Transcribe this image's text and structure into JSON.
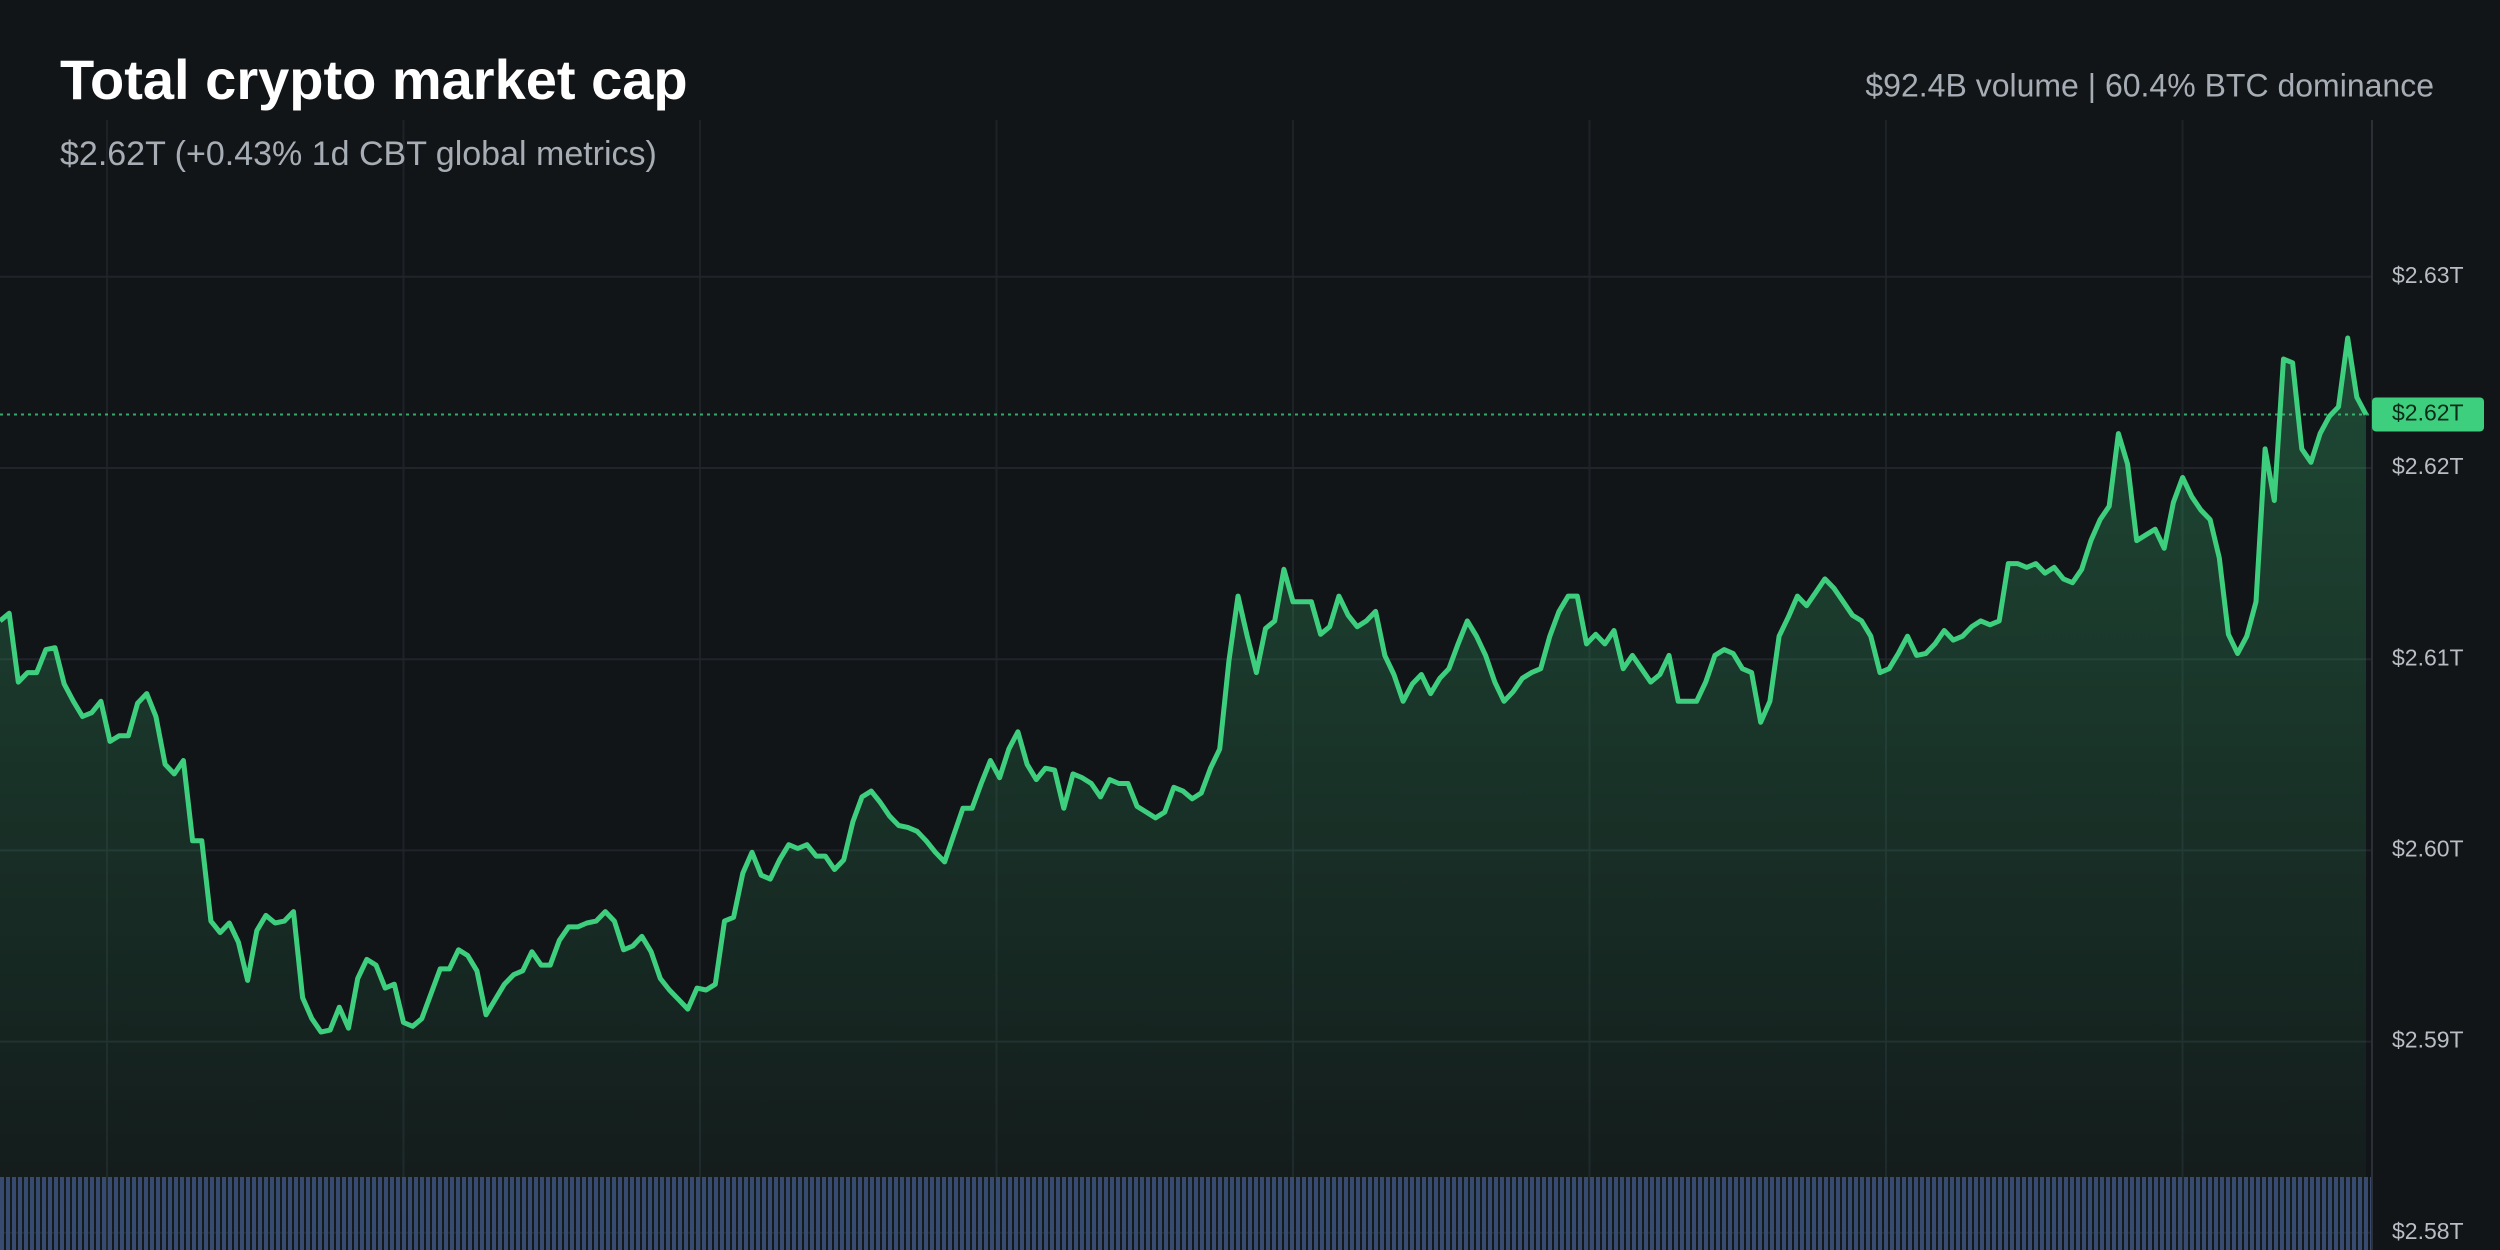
{
  "header": {
    "title": "Total crypto market cap",
    "subtitle": "$2.62T (+0.43% 1d CBT global metrics)",
    "stats": "$92.4B volume | 60.4% BTC dominance"
  },
  "chart_data": {
    "type": "area",
    "color": "#3ecf7e",
    "grid": true,
    "ylim": [
      2.5791,
      2.6382
    ],
    "yticks": [
      {
        "value": 2.58,
        "label": "$2.58T"
      },
      {
        "value": 2.59,
        "label": "$2.59T"
      },
      {
        "value": 2.6,
        "label": "$2.60T"
      },
      {
        "value": 2.61,
        "label": "$2.61T"
      },
      {
        "value": 2.62,
        "label": "$2.62T"
      },
      {
        "value": 2.63,
        "label": "$2.63T"
      }
    ],
    "last_price": {
      "value": 2.6228,
      "label": "$2.62T"
    },
    "values": [
      2.612,
      2.6124,
      2.6088,
      2.6093,
      2.6093,
      2.6105,
      2.6106,
      2.6087,
      2.6078,
      2.607,
      2.6072,
      2.6078,
      2.6057,
      2.606,
      2.606,
      2.6077,
      2.6082,
      2.607,
      2.6045,
      2.604,
      2.6047,
      2.6005,
      2.6005,
      2.5963,
      2.5957,
      2.5962,
      2.5952,
      2.5932,
      2.5958,
      2.5966,
      2.5962,
      2.5963,
      2.5968,
      2.5923,
      2.5912,
      2.5905,
      2.5906,
      2.5918,
      2.5907,
      2.5933,
      2.5943,
      2.594,
      2.5928,
      2.593,
      2.591,
      2.5908,
      2.5912,
      2.5925,
      2.5938,
      2.5938,
      2.5948,
      2.5945,
      2.5937,
      2.5914,
      2.5922,
      2.593,
      2.5935,
      2.5937,
      2.5947,
      2.594,
      2.594,
      2.5953,
      2.596,
      2.596,
      2.5962,
      2.5963,
      2.5968,
      2.5963,
      2.5948,
      2.595,
      2.5955,
      2.5947,
      2.5933,
      2.5927,
      2.5922,
      2.5917,
      2.5928,
      2.5927,
      2.593,
      2.5963,
      2.5965,
      2.5988,
      2.5999,
      2.5987,
      2.5985,
      2.5995,
      2.6003,
      2.6001,
      2.6003,
      2.5997,
      2.5997,
      2.599,
      2.5995,
      2.6015,
      2.6028,
      2.6031,
      2.6025,
      2.6018,
      2.6013,
      2.6012,
      2.601,
      2.6005,
      2.5999,
      2.5994,
      2.6008,
      2.6022,
      2.6022,
      2.6035,
      2.6047,
      2.6038,
      2.6053,
      2.6062,
      2.6045,
      2.6037,
      2.6043,
      2.6042,
      2.6022,
      2.604,
      2.6038,
      2.6035,
      2.6028,
      2.6037,
      2.6035,
      2.6035,
      2.6023,
      2.602,
      2.6017,
      2.602,
      2.6033,
      2.6031,
      2.6027,
      2.603,
      2.6043,
      2.6053,
      2.6099,
      2.6133,
      2.6112,
      2.6093,
      2.6116,
      2.612,
      2.6147,
      2.613,
      2.613,
      2.613,
      2.6113,
      2.6117,
      2.6133,
      2.6123,
      2.6117,
      2.612,
      2.6125,
      2.6102,
      2.6092,
      2.6078,
      2.6087,
      2.6092,
      2.6082,
      2.609,
      2.6095,
      2.6108,
      2.612,
      2.6112,
      2.6102,
      2.6088,
      2.6078,
      2.6083,
      2.609,
      2.6093,
      2.6095,
      2.6112,
      2.6125,
      2.6133,
      2.6133,
      2.6108,
      2.6113,
      2.6108,
      2.6115,
      2.6095,
      2.6102,
      2.6095,
      2.6088,
      2.6092,
      2.6102,
      2.6078,
      2.6078,
      2.6078,
      2.6088,
      2.6102,
      2.6105,
      2.6103,
      2.6095,
      2.6093,
      2.6067,
      2.6078,
      2.6112,
      2.6122,
      2.6133,
      2.6128,
      2.6135,
      2.6142,
      2.6137,
      2.613,
      2.6123,
      2.612,
      2.6112,
      2.6093,
      2.6095,
      2.6103,
      2.6112,
      2.6102,
      2.6103,
      2.6108,
      2.6115,
      2.611,
      2.6112,
      2.6117,
      2.612,
      2.6118,
      2.612,
      2.615,
      2.615,
      2.6148,
      2.615,
      2.6145,
      2.6148,
      2.6142,
      2.614,
      2.6147,
      2.6162,
      2.6173,
      2.618,
      2.6218,
      2.6202,
      2.6162,
      2.6165,
      2.6168,
      2.6158,
      2.6182,
      2.6195,
      2.6185,
      2.6178,
      2.6173,
      2.6153,
      2.6113,
      2.6103,
      2.6112,
      2.613,
      2.621,
      2.6183,
      2.6257,
      2.6255,
      2.621,
      2.6203,
      2.6218,
      2.6227,
      2.6232,
      2.6268,
      2.6237,
      2.6228
    ]
  }
}
